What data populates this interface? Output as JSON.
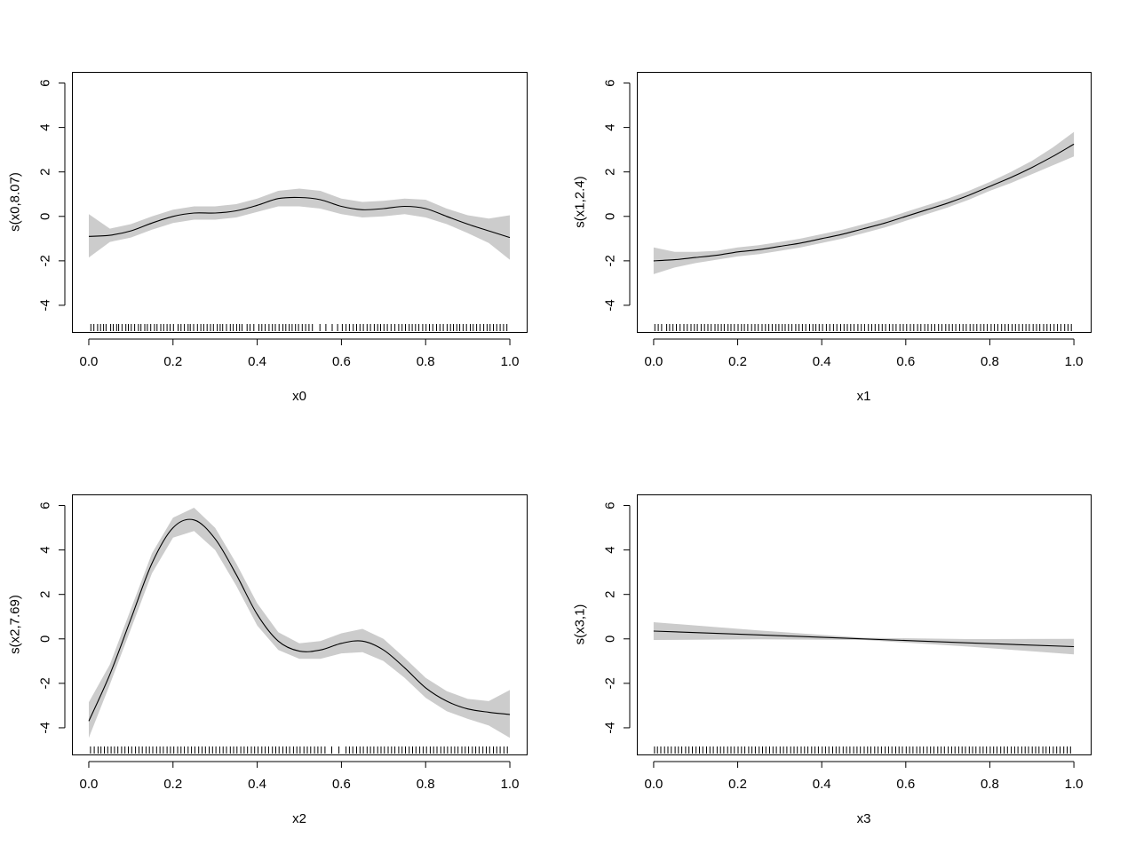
{
  "figure": {
    "background": "#ffffff",
    "band_color": "#cccccc",
    "line_color": "#000000"
  },
  "chart_data": [
    {
      "type": "line",
      "title": "",
      "xlabel": "x0",
      "ylabel": "s(x0,8.07)",
      "xlim": [
        0,
        1
      ],
      "ylim": [
        -5,
        6
      ],
      "xticks": [
        0.0,
        0.2,
        0.4,
        0.6,
        0.8,
        1.0
      ],
      "xtick_labels": [
        "0.0",
        "0.2",
        "0.4",
        "0.6",
        "0.8",
        "1.0"
      ],
      "yticks": [
        -4,
        -2,
        0,
        2,
        4,
        6
      ],
      "ytick_labels": [
        "-4",
        "-2",
        "0",
        "2",
        "4",
        "6"
      ],
      "grid": false,
      "series": [
        {
          "x": [
            0.0,
            0.05,
            0.1,
            0.15,
            0.2,
            0.25,
            0.3,
            0.35,
            0.4,
            0.45,
            0.5,
            0.55,
            0.6,
            0.65,
            0.7,
            0.75,
            0.8,
            0.85,
            0.9,
            0.95,
            1.0
          ],
          "y": [
            -0.9,
            -0.85,
            -0.65,
            -0.3,
            0.0,
            0.15,
            0.15,
            0.25,
            0.5,
            0.8,
            0.85,
            0.75,
            0.45,
            0.3,
            0.35,
            0.45,
            0.35,
            0.0,
            -0.35,
            -0.65,
            -0.95
          ],
          "lower": [
            -1.85,
            -1.15,
            -0.95,
            -0.6,
            -0.3,
            -0.15,
            -0.15,
            -0.05,
            0.2,
            0.45,
            0.45,
            0.35,
            0.1,
            -0.05,
            0.0,
            0.1,
            -0.05,
            -0.35,
            -0.75,
            -1.2,
            -1.95
          ],
          "upper": [
            0.1,
            -0.55,
            -0.35,
            0.0,
            0.3,
            0.45,
            0.45,
            0.55,
            0.8,
            1.15,
            1.25,
            1.15,
            0.8,
            0.65,
            0.7,
            0.8,
            0.75,
            0.35,
            0.05,
            -0.1,
            0.05
          ]
        }
      ],
      "rug": [
        0.005,
        0.012,
        0.021,
        0.028,
        0.035,
        0.041,
        0.052,
        0.058,
        0.066,
        0.071,
        0.079,
        0.088,
        0.094,
        0.101,
        0.109,
        0.118,
        0.124,
        0.133,
        0.139,
        0.147,
        0.156,
        0.162,
        0.171,
        0.178,
        0.186,
        0.193,
        0.201,
        0.212,
        0.219,
        0.227,
        0.236,
        0.241,
        0.249,
        0.258,
        0.266,
        0.273,
        0.281,
        0.289,
        0.296,
        0.305,
        0.312,
        0.318,
        0.327,
        0.336,
        0.343,
        0.351,
        0.358,
        0.364,
        0.376,
        0.383,
        0.392,
        0.404,
        0.411,
        0.419,
        0.428,
        0.436,
        0.443,
        0.452,
        0.461,
        0.468,
        0.476,
        0.483,
        0.491,
        0.498,
        0.507,
        0.515,
        0.523,
        0.531,
        0.549,
        0.563,
        0.578,
        0.591,
        0.602,
        0.611,
        0.619,
        0.628,
        0.636,
        0.644,
        0.652,
        0.661,
        0.669,
        0.678,
        0.686,
        0.693,
        0.701,
        0.709,
        0.718,
        0.727,
        0.736,
        0.744,
        0.752,
        0.761,
        0.768,
        0.776,
        0.784,
        0.793,
        0.801,
        0.809,
        0.817,
        0.826,
        0.834,
        0.842,
        0.851,
        0.859,
        0.866,
        0.874,
        0.881,
        0.889,
        0.897,
        0.906,
        0.913,
        0.921,
        0.929,
        0.938,
        0.946,
        0.953,
        0.961,
        0.969,
        0.977,
        0.985,
        0.993
      ]
    },
    {
      "type": "line",
      "title": "",
      "xlabel": "x1",
      "ylabel": "s(x1,2.4)",
      "xlim": [
        0,
        1
      ],
      "ylim": [
        -5,
        6
      ],
      "xticks": [
        0.0,
        0.2,
        0.4,
        0.6,
        0.8,
        1.0
      ],
      "xtick_labels": [
        "0.0",
        "0.2",
        "0.4",
        "0.6",
        "0.8",
        "1.0"
      ],
      "yticks": [
        -4,
        -2,
        0,
        2,
        4,
        6
      ],
      "ytick_labels": [
        "-4",
        "-2",
        "0",
        "2",
        "4",
        "6"
      ],
      "grid": false,
      "series": [
        {
          "x": [
            0.0,
            0.05,
            0.1,
            0.15,
            0.2,
            0.25,
            0.3,
            0.35,
            0.4,
            0.45,
            0.5,
            0.55,
            0.6,
            0.65,
            0.7,
            0.75,
            0.8,
            0.85,
            0.9,
            0.95,
            1.0
          ],
          "y": [
            -2.0,
            -1.95,
            -1.85,
            -1.75,
            -1.6,
            -1.5,
            -1.35,
            -1.2,
            -1.0,
            -0.8,
            -0.55,
            -0.3,
            0.0,
            0.3,
            0.6,
            0.95,
            1.35,
            1.75,
            2.2,
            2.7,
            3.25
          ],
          "lower": [
            -2.6,
            -2.3,
            -2.1,
            -1.95,
            -1.8,
            -1.7,
            -1.55,
            -1.4,
            -1.2,
            -1.0,
            -0.75,
            -0.5,
            -0.2,
            0.1,
            0.4,
            0.75,
            1.15,
            1.5,
            1.9,
            2.3,
            2.7
          ],
          "upper": [
            -1.4,
            -1.6,
            -1.6,
            -1.55,
            -1.4,
            -1.3,
            -1.15,
            -1.0,
            -0.8,
            -0.6,
            -0.35,
            -0.1,
            0.2,
            0.5,
            0.8,
            1.15,
            1.55,
            2.0,
            2.5,
            3.1,
            3.8
          ]
        }
      ],
      "rug": [
        0.003,
        0.011,
        0.019,
        0.031,
        0.038,
        0.046,
        0.054,
        0.063,
        0.072,
        0.08,
        0.089,
        0.097,
        0.104,
        0.113,
        0.121,
        0.129,
        0.137,
        0.146,
        0.153,
        0.161,
        0.168,
        0.177,
        0.184,
        0.192,
        0.201,
        0.209,
        0.216,
        0.224,
        0.233,
        0.241,
        0.249,
        0.258,
        0.266,
        0.274,
        0.282,
        0.291,
        0.298,
        0.306,
        0.313,
        0.321,
        0.329,
        0.338,
        0.346,
        0.354,
        0.362,
        0.371,
        0.379,
        0.386,
        0.394,
        0.402,
        0.411,
        0.419,
        0.428,
        0.436,
        0.445,
        0.453,
        0.461,
        0.469,
        0.477,
        0.486,
        0.494,
        0.502,
        0.511,
        0.519,
        0.527,
        0.536,
        0.544,
        0.552,
        0.561,
        0.569,
        0.577,
        0.586,
        0.594,
        0.602,
        0.611,
        0.619,
        0.628,
        0.636,
        0.645,
        0.653,
        0.661,
        0.669,
        0.678,
        0.686,
        0.695,
        0.703,
        0.711,
        0.719,
        0.728,
        0.736,
        0.744,
        0.753,
        0.761,
        0.769,
        0.778,
        0.786,
        0.794,
        0.803,
        0.811,
        0.819,
        0.828,
        0.836,
        0.844,
        0.853,
        0.861,
        0.869,
        0.878,
        0.886,
        0.894,
        0.903,
        0.911,
        0.919,
        0.928,
        0.936,
        0.944,
        0.953,
        0.961,
        0.969,
        0.978,
        0.986,
        0.994
      ]
    },
    {
      "type": "line",
      "title": "",
      "xlabel": "x2",
      "ylabel": "s(x2,7.69)",
      "xlim": [
        0,
        1
      ],
      "ylim": [
        -5,
        6
      ],
      "xticks": [
        0.0,
        0.2,
        0.4,
        0.6,
        0.8,
        1.0
      ],
      "xtick_labels": [
        "0.0",
        "0.2",
        "0.4",
        "0.6",
        "0.8",
        "1.0"
      ],
      "yticks": [
        -4,
        -2,
        0,
        2,
        4,
        6
      ],
      "ytick_labels": [
        "-4",
        "-2",
        "0",
        "2",
        "4",
        "6"
      ],
      "grid": false,
      "series": [
        {
          "x": [
            0.0,
            0.05,
            0.1,
            0.15,
            0.2,
            0.25,
            0.3,
            0.35,
            0.4,
            0.45,
            0.5,
            0.55,
            0.6,
            0.65,
            0.7,
            0.75,
            0.8,
            0.85,
            0.9,
            0.95,
            1.0
          ],
          "y": [
            -3.7,
            -1.6,
            0.9,
            3.4,
            5.0,
            5.35,
            4.5,
            2.9,
            1.1,
            -0.1,
            -0.55,
            -0.5,
            -0.2,
            -0.1,
            -0.5,
            -1.3,
            -2.2,
            -2.8,
            -3.15,
            -3.3,
            -3.4
          ],
          "lower": [
            -4.45,
            -2.05,
            0.45,
            2.95,
            4.55,
            4.85,
            4.0,
            2.4,
            0.6,
            -0.5,
            -0.9,
            -0.9,
            -0.65,
            -0.6,
            -1.0,
            -1.75,
            -2.65,
            -3.25,
            -3.6,
            -3.9,
            -4.45
          ],
          "upper": [
            -2.85,
            -1.15,
            1.35,
            3.85,
            5.45,
            5.9,
            5.0,
            3.4,
            1.6,
            0.3,
            -0.2,
            -0.1,
            0.25,
            0.45,
            0.0,
            -0.85,
            -1.75,
            -2.35,
            -2.7,
            -2.8,
            -2.3
          ]
        }
      ],
      "rug": [
        0.004,
        0.013,
        0.022,
        0.029,
        0.037,
        0.045,
        0.053,
        0.061,
        0.069,
        0.078,
        0.086,
        0.094,
        0.102,
        0.111,
        0.119,
        0.127,
        0.136,
        0.144,
        0.152,
        0.161,
        0.169,
        0.177,
        0.186,
        0.194,
        0.202,
        0.211,
        0.219,
        0.227,
        0.236,
        0.244,
        0.252,
        0.261,
        0.269,
        0.277,
        0.286,
        0.294,
        0.302,
        0.311,
        0.319,
        0.327,
        0.336,
        0.344,
        0.352,
        0.361,
        0.369,
        0.377,
        0.386,
        0.394,
        0.402,
        0.411,
        0.419,
        0.427,
        0.436,
        0.444,
        0.452,
        0.461,
        0.469,
        0.477,
        0.486,
        0.494,
        0.502,
        0.511,
        0.519,
        0.527,
        0.536,
        0.544,
        0.552,
        0.561,
        0.577,
        0.594,
        0.611,
        0.619,
        0.627,
        0.636,
        0.644,
        0.652,
        0.661,
        0.669,
        0.677,
        0.686,
        0.694,
        0.702,
        0.711,
        0.719,
        0.727,
        0.736,
        0.744,
        0.752,
        0.761,
        0.769,
        0.777,
        0.786,
        0.794,
        0.802,
        0.811,
        0.819,
        0.827,
        0.836,
        0.844,
        0.852,
        0.861,
        0.869,
        0.877,
        0.886,
        0.894,
        0.902,
        0.911,
        0.919,
        0.927,
        0.936,
        0.944,
        0.952,
        0.961,
        0.969,
        0.977,
        0.986,
        0.994
      ]
    },
    {
      "type": "line",
      "title": "",
      "xlabel": "x3",
      "ylabel": "s(x3,1)",
      "xlim": [
        0,
        1
      ],
      "ylim": [
        -5,
        6
      ],
      "xticks": [
        0.0,
        0.2,
        0.4,
        0.6,
        0.8,
        1.0
      ],
      "xtick_labels": [
        "0.0",
        "0.2",
        "0.4",
        "0.6",
        "0.8",
        "1.0"
      ],
      "yticks": [
        -4,
        -2,
        0,
        2,
        4,
        6
      ],
      "ytick_labels": [
        "-4",
        "-2",
        "0",
        "2",
        "4",
        "6"
      ],
      "grid": false,
      "series": [
        {
          "x": [
            0.0,
            0.25,
            0.5,
            0.75,
            1.0
          ],
          "y": [
            0.35,
            0.18,
            0.0,
            -0.18,
            -0.35
          ],
          "lower": [
            -0.05,
            -0.02,
            -0.05,
            -0.35,
            -0.7
          ],
          "upper": [
            0.75,
            0.38,
            0.05,
            -0.01,
            0.0
          ]
        }
      ],
      "rug": [
        0.002,
        0.009,
        0.017,
        0.026,
        0.034,
        0.042,
        0.051,
        0.059,
        0.067,
        0.076,
        0.084,
        0.092,
        0.101,
        0.109,
        0.117,
        0.126,
        0.134,
        0.142,
        0.151,
        0.159,
        0.167,
        0.176,
        0.184,
        0.192,
        0.201,
        0.209,
        0.217,
        0.226,
        0.234,
        0.242,
        0.251,
        0.259,
        0.267,
        0.276,
        0.284,
        0.292,
        0.301,
        0.309,
        0.317,
        0.326,
        0.334,
        0.342,
        0.351,
        0.359,
        0.367,
        0.376,
        0.384,
        0.392,
        0.401,
        0.409,
        0.417,
        0.426,
        0.434,
        0.442,
        0.451,
        0.459,
        0.467,
        0.476,
        0.484,
        0.492,
        0.501,
        0.509,
        0.517,
        0.526,
        0.534,
        0.542,
        0.551,
        0.559,
        0.567,
        0.576,
        0.584,
        0.592,
        0.601,
        0.609,
        0.617,
        0.626,
        0.634,
        0.642,
        0.651,
        0.659,
        0.667,
        0.676,
        0.684,
        0.692,
        0.701,
        0.709,
        0.717,
        0.726,
        0.734,
        0.742,
        0.751,
        0.759,
        0.767,
        0.776,
        0.784,
        0.792,
        0.801,
        0.809,
        0.817,
        0.826,
        0.834,
        0.842,
        0.851,
        0.859,
        0.867,
        0.876,
        0.884,
        0.892,
        0.901,
        0.909,
        0.917,
        0.926,
        0.934,
        0.942,
        0.951,
        0.959,
        0.967,
        0.976,
        0.984,
        0.992
      ]
    }
  ]
}
